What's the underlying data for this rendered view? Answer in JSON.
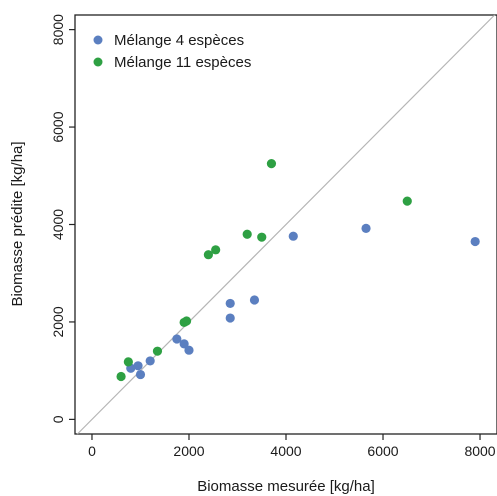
{
  "chart_data": {
    "type": "scatter",
    "title": "",
    "xlabel": "Biomasse mesurée [kg/ha]",
    "ylabel": "Biomasse prédite [kg/ha]",
    "xlim": [
      -350,
      8350
    ],
    "ylim": [
      -300,
      8300
    ],
    "xticks": [
      0,
      2000,
      4000,
      6000,
      8000
    ],
    "yticks": [
      0,
      2000,
      4000,
      6000,
      8000
    ],
    "xtick_labels": [
      "0",
      "2000",
      "4000",
      "6000",
      "8000"
    ],
    "ytick_labels": [
      "0",
      "2000",
      "4000",
      "6000",
      "8000"
    ],
    "grid": false,
    "reference_line": "1:1 diagonal",
    "reference_line_color": "#b5b5b5",
    "legend_position": "top-left",
    "series": [
      {
        "name": "Mélange 4 espèces",
        "color": "#5b7fc0",
        "points": [
          [
            800,
            1050
          ],
          [
            950,
            1100
          ],
          [
            1000,
            920
          ],
          [
            1200,
            1200
          ],
          [
            1750,
            1650
          ],
          [
            1900,
            1550
          ],
          [
            2000,
            1420
          ],
          [
            2850,
            2080
          ],
          [
            2850,
            2380
          ],
          [
            3350,
            2450
          ],
          [
            4150,
            3760
          ],
          [
            5650,
            3920
          ],
          [
            7900,
            3650
          ]
        ]
      },
      {
        "name": "Mélange 11 espèces",
        "color": "#2ea043",
        "points": [
          [
            600,
            880
          ],
          [
            750,
            1180
          ],
          [
            1350,
            1400
          ],
          [
            1900,
            1990
          ],
          [
            1950,
            2020
          ],
          [
            2400,
            3380
          ],
          [
            2550,
            3480
          ],
          [
            3200,
            3800
          ],
          [
            3500,
            3740
          ],
          [
            3700,
            5250
          ],
          [
            6500,
            4480
          ]
        ]
      }
    ]
  }
}
